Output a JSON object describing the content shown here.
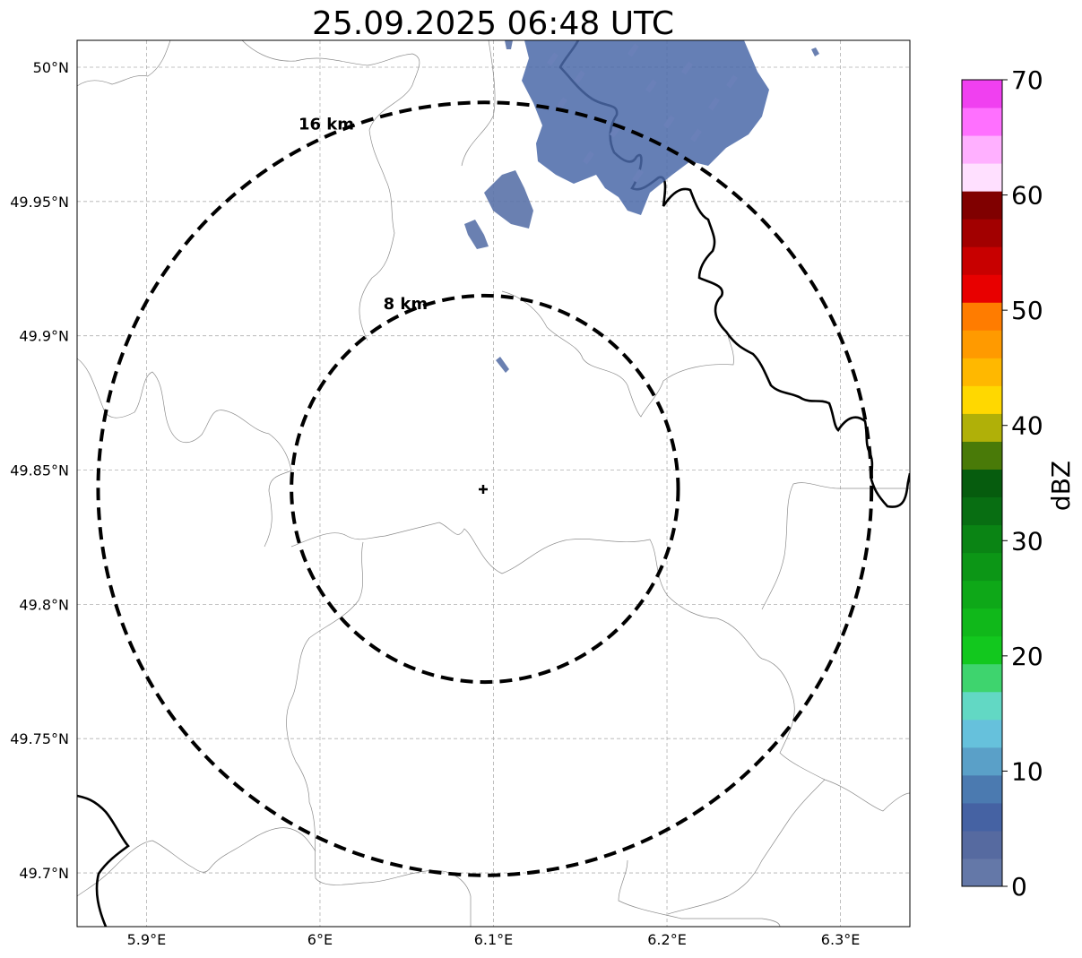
{
  "title": "25.09.2025 06:48 UTC",
  "map": {
    "lon_range": [
      5.86,
      6.34
    ],
    "lat_range": [
      49.68,
      50.01
    ],
    "x_ticks": [
      {
        "value": 5.9,
        "label": "5.9°E"
      },
      {
        "value": 6.0,
        "label": "6°E"
      },
      {
        "value": 6.1,
        "label": "6.1°E"
      },
      {
        "value": 6.2,
        "label": "6.2°E"
      },
      {
        "value": 6.3,
        "label": "6.3°E"
      }
    ],
    "y_ticks": [
      {
        "value": 50.0,
        "label": "50°N"
      },
      {
        "value": 49.95,
        "label": "49.95°N"
      },
      {
        "value": 49.9,
        "label": "49.9°N"
      },
      {
        "value": 49.85,
        "label": "49.85°N"
      },
      {
        "value": 49.8,
        "label": "49.8°N"
      },
      {
        "value": 49.75,
        "label": "49.75°N"
      },
      {
        "value": 49.7,
        "label": "49.7°N"
      }
    ],
    "grid": true,
    "radar_site": {
      "lon": 6.095,
      "lat": 49.843
    },
    "range_rings": [
      {
        "radius_km": 8,
        "label": "8 km"
      },
      {
        "radius_km": 16,
        "label": "16 km"
      }
    ],
    "echo_color": "#5a72a8",
    "echo_color_strong": "#4a68a8"
  },
  "colorbar": {
    "label": "dBZ",
    "min": 0,
    "max": 70,
    "tick_labels": [
      "0",
      "10",
      "20",
      "30",
      "40",
      "50",
      "60",
      "70"
    ],
    "colors": [
      "#6478a8",
      "#566aa0",
      "#4562a3",
      "#4b7ab0",
      "#5aa0c8",
      "#66c1dc",
      "#62d8c4",
      "#3ed46e",
      "#12c81e",
      "#10b81a",
      "#0ea818",
      "#0c9616",
      "#0a8414",
      "#086e12",
      "#065c0e",
      "#497a08",
      "#b0b008",
      "#ffd800",
      "#ffb800",
      "#ff9a00",
      "#ff7c00",
      "#e80000",
      "#c80000",
      "#a20000",
      "#800000",
      "#ffe0ff",
      "#ffb0ff",
      "#ff70ff",
      "#f040f0"
    ]
  }
}
